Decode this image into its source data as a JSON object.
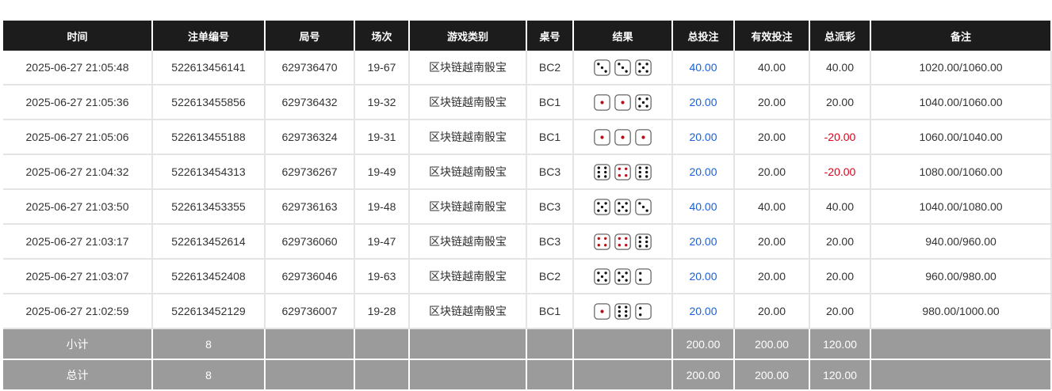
{
  "headers": [
    "时间",
    "注单编号",
    "局号",
    "场次",
    "游戏类别",
    "桌号",
    "结果",
    "总投注",
    "有效投注",
    "总派彩",
    "备注"
  ],
  "rows": [
    {
      "time": "2025-06-27 21:05:48",
      "bet_id": "522613456141",
      "round": "629736470",
      "session": "19-67",
      "game": "区块链越南骰宝",
      "table": "BC2",
      "dice": [
        3,
        3,
        5
      ],
      "total_bet": "40.00",
      "valid_bet": "40.00",
      "payout": "40.00",
      "payout_negative": false,
      "note": "1020.00/1060.00"
    },
    {
      "time": "2025-06-27 21:05:36",
      "bet_id": "522613455856",
      "round": "629736432",
      "session": "19-32",
      "game": "区块链越南骰宝",
      "table": "BC1",
      "dice": [
        1,
        1,
        5
      ],
      "total_bet": "20.00",
      "valid_bet": "20.00",
      "payout": "20.00",
      "payout_negative": false,
      "note": "1040.00/1060.00"
    },
    {
      "time": "2025-06-27 21:05:06",
      "bet_id": "522613455188",
      "round": "629736324",
      "session": "19-31",
      "game": "区块链越南骰宝",
      "table": "BC1",
      "dice": [
        1,
        1,
        1
      ],
      "total_bet": "20.00",
      "valid_bet": "20.00",
      "payout": "-20.00",
      "payout_negative": true,
      "note": "1060.00/1040.00"
    },
    {
      "time": "2025-06-27 21:04:32",
      "bet_id": "522613454313",
      "round": "629736267",
      "session": "19-49",
      "game": "区块链越南骰宝",
      "table": "BC3",
      "dice": [
        6,
        4,
        6
      ],
      "total_bet": "20.00",
      "valid_bet": "20.00",
      "payout": "-20.00",
      "payout_negative": true,
      "note": "1080.00/1060.00"
    },
    {
      "time": "2025-06-27 21:03:50",
      "bet_id": "522613453355",
      "round": "629736163",
      "session": "19-48",
      "game": "区块链越南骰宝",
      "table": "BC3",
      "dice": [
        5,
        5,
        3
      ],
      "total_bet": "40.00",
      "valid_bet": "40.00",
      "payout": "40.00",
      "payout_negative": false,
      "note": "1040.00/1080.00"
    },
    {
      "time": "2025-06-27 21:03:17",
      "bet_id": "522613452614",
      "round": "629736060",
      "session": "19-47",
      "game": "区块链越南骰宝",
      "table": "BC3",
      "dice": [
        4,
        4,
        6
      ],
      "total_bet": "20.00",
      "valid_bet": "20.00",
      "payout": "20.00",
      "payout_negative": false,
      "note": "940.00/960.00"
    },
    {
      "time": "2025-06-27 21:03:07",
      "bet_id": "522613452408",
      "round": "629736046",
      "session": "19-63",
      "game": "区块链越南骰宝",
      "table": "BC2",
      "dice": [
        5,
        5,
        2
      ],
      "total_bet": "20.00",
      "valid_bet": "20.00",
      "payout": "20.00",
      "payout_negative": false,
      "note": "960.00/980.00"
    },
    {
      "time": "2025-06-27 21:02:59",
      "bet_id": "522613452129",
      "round": "629736007",
      "session": "19-28",
      "game": "区块链越南骰宝",
      "table": "BC1",
      "dice": [
        1,
        6,
        2
      ],
      "total_bet": "20.00",
      "valid_bet": "20.00",
      "payout": "20.00",
      "payout_negative": false,
      "note": "980.00/1000.00"
    }
  ],
  "subtotal": {
    "label": "小计",
    "count": "8",
    "total_bet": "200.00",
    "valid_bet": "200.00",
    "payout": "120.00"
  },
  "total": {
    "label": "总计",
    "count": "8",
    "total_bet": "200.00",
    "valid_bet": "200.00",
    "payout": "120.00"
  },
  "colors": {
    "header_bg": "#1c1c1c",
    "summary_bg": "#9b9b9b",
    "bet_blue": "#1a5fd6",
    "negative_red": "#e0001a",
    "pip_red": "#b0101a"
  }
}
